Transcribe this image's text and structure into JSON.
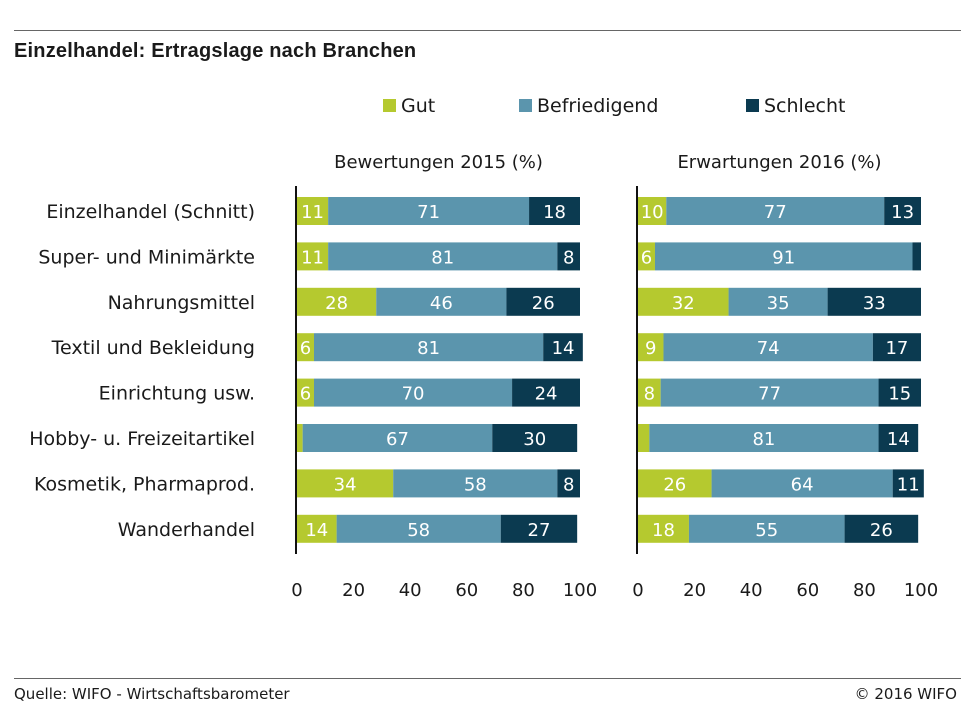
{
  "header": {
    "title": "Einzelhandel: Ertragslage nach Branchen"
  },
  "footer": {
    "source": "Quelle: WIFO - Wirtschaftsbarometer",
    "copyright": "© 2016 WIFO"
  },
  "chart_data": {
    "type": "bar",
    "orientation": "horizontal",
    "stacked": true,
    "legend_position": "top",
    "categories": [
      "Einzelhandel (Schnitt)",
      "Super- und Minimärkte",
      "Nahrungsmittel",
      "Textil und Bekleidung",
      "Einrichtung usw.",
      "Hobby- u. Freizeitartikel",
      "Kosmetik, Pharmaprod.",
      "Wanderhandel"
    ],
    "series_names": [
      "Gut",
      "Befriedigend",
      "Schlecht"
    ],
    "colors": {
      "Gut": "#b5c92f",
      "Befriedigend": "#5b95ad",
      "Schlecht": "#0b3a50"
    },
    "xlim": [
      0,
      100
    ],
    "xticks": [
      "0",
      "20",
      "40",
      "60",
      "80",
      "100"
    ],
    "panels": [
      {
        "subtitle": "Bewertungen 2015 (%)",
        "series": [
          {
            "name": "Gut",
            "values": [
              11,
              11,
              28,
              6,
              6,
              2,
              34,
              14
            ],
            "labels": [
              "11",
              "11",
              "28",
              "6",
              "6",
              "",
              "34",
              "14"
            ]
          },
          {
            "name": "Befriedigend",
            "values": [
              71,
              81,
              46,
              81,
              70,
              67,
              58,
              58
            ],
            "labels": [
              "71",
              "81",
              "46",
              "81",
              "70",
              "67",
              "58",
              "58"
            ]
          },
          {
            "name": "Schlecht",
            "values": [
              18,
              8,
              26,
              14,
              24,
              30,
              8,
              27
            ],
            "labels": [
              "18",
              "8",
              "26",
              "14",
              "24",
              "30",
              "8",
              "27"
            ]
          }
        ]
      },
      {
        "subtitle": "Erwartungen 2016 (%)",
        "series": [
          {
            "name": "Gut",
            "values": [
              10,
              6,
              32,
              9,
              8,
              4,
              26,
              18
            ],
            "labels": [
              "10",
              "6",
              "32",
              "9",
              "8",
              "",
              "26",
              "18"
            ]
          },
          {
            "name": "Befriedigend",
            "values": [
              77,
              91,
              35,
              74,
              77,
              81,
              64,
              55
            ],
            "labels": [
              "77",
              "91",
              "35",
              "74",
              "77",
              "81",
              "64",
              "55"
            ]
          },
          {
            "name": "Schlecht",
            "values": [
              13,
              3,
              33,
              17,
              15,
              14,
              11,
              26
            ],
            "labels": [
              "13",
              "",
              "33",
              "17",
              "15",
              "14",
              "11",
              "26"
            ]
          }
        ]
      }
    ]
  }
}
